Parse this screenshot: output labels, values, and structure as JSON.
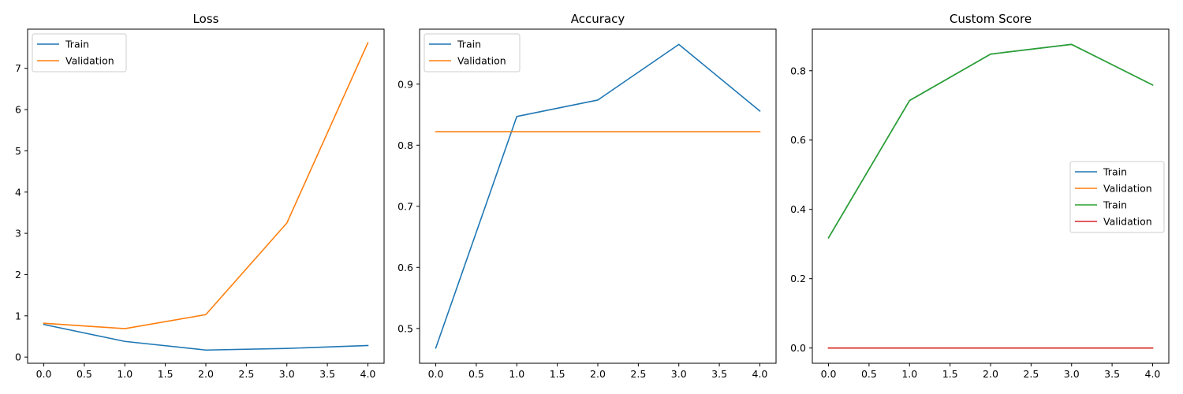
{
  "chart_data": [
    {
      "type": "line",
      "title": "Loss",
      "xlabel": "",
      "ylabel": "",
      "x": [
        0,
        1,
        2,
        3,
        4
      ],
      "xlim": [
        -0.2,
        4.2
      ],
      "ylim": [
        -0.15,
        7.95
      ],
      "xticks": [
        "0.0",
        "0.5",
        "1.0",
        "1.5",
        "2.0",
        "2.5",
        "3.0",
        "3.5",
        "4.0"
      ],
      "yticks": [
        "0",
        "1",
        "2",
        "3",
        "4",
        "5",
        "6",
        "7"
      ],
      "grid": false,
      "legend_position": "upper-left",
      "series": [
        {
          "name": "Train",
          "color": "#1f77b4",
          "values": [
            0.79,
            0.38,
            0.17,
            0.21,
            0.28
          ]
        },
        {
          "name": "Validation",
          "color": "#ff7f0e",
          "values": [
            0.82,
            0.69,
            1.03,
            3.25,
            7.62
          ]
        }
      ]
    },
    {
      "type": "line",
      "title": "Accuracy",
      "xlabel": "",
      "ylabel": "",
      "x": [
        0,
        1,
        2,
        3,
        4
      ],
      "xlim": [
        -0.2,
        4.2
      ],
      "ylim": [
        0.443,
        0.99
      ],
      "xticks": [
        "0.0",
        "0.5",
        "1.0",
        "1.5",
        "2.0",
        "2.5",
        "3.0",
        "3.5",
        "4.0"
      ],
      "yticks": [
        "0.5",
        "0.6",
        "0.7",
        "0.8",
        "0.9"
      ],
      "grid": false,
      "legend_position": "upper-left",
      "series": [
        {
          "name": "Train",
          "color": "#1f77b4",
          "values": [
            0.468,
            0.847,
            0.874,
            0.965,
            0.856
          ]
        },
        {
          "name": "Validation",
          "color": "#ff7f0e",
          "values": [
            0.822,
            0.822,
            0.822,
            0.822,
            0.822
          ]
        }
      ]
    },
    {
      "type": "line",
      "title": "Custom Score",
      "xlabel": "",
      "ylabel": "",
      "x": [
        0,
        1,
        2,
        3,
        4
      ],
      "xlim": [
        -0.2,
        4.2
      ],
      "ylim": [
        -0.044,
        0.92
      ],
      "xticks": [
        "0.0",
        "0.5",
        "1.0",
        "1.5",
        "2.0",
        "2.5",
        "3.0",
        "3.5",
        "4.0"
      ],
      "yticks": [
        "0.0",
        "0.2",
        "0.4",
        "0.6",
        "0.8"
      ],
      "grid": false,
      "legend_position": "center-right",
      "series": [
        {
          "name": "Train",
          "color": "#1f77b4",
          "values": [
            0.318,
            0.714,
            0.848,
            0.876,
            0.759
          ]
        },
        {
          "name": "Validation",
          "color": "#ff7f0e",
          "values": [
            0.0,
            0.0,
            0.0,
            0.0,
            0.0
          ]
        },
        {
          "name": "Train",
          "color": "#2ca02c",
          "values": [
            0.318,
            0.714,
            0.848,
            0.876,
            0.759
          ]
        },
        {
          "name": "Validation",
          "color": "#d62728",
          "values": [
            0.0,
            0.0,
            0.0,
            0.0,
            0.0
          ]
        }
      ]
    }
  ]
}
